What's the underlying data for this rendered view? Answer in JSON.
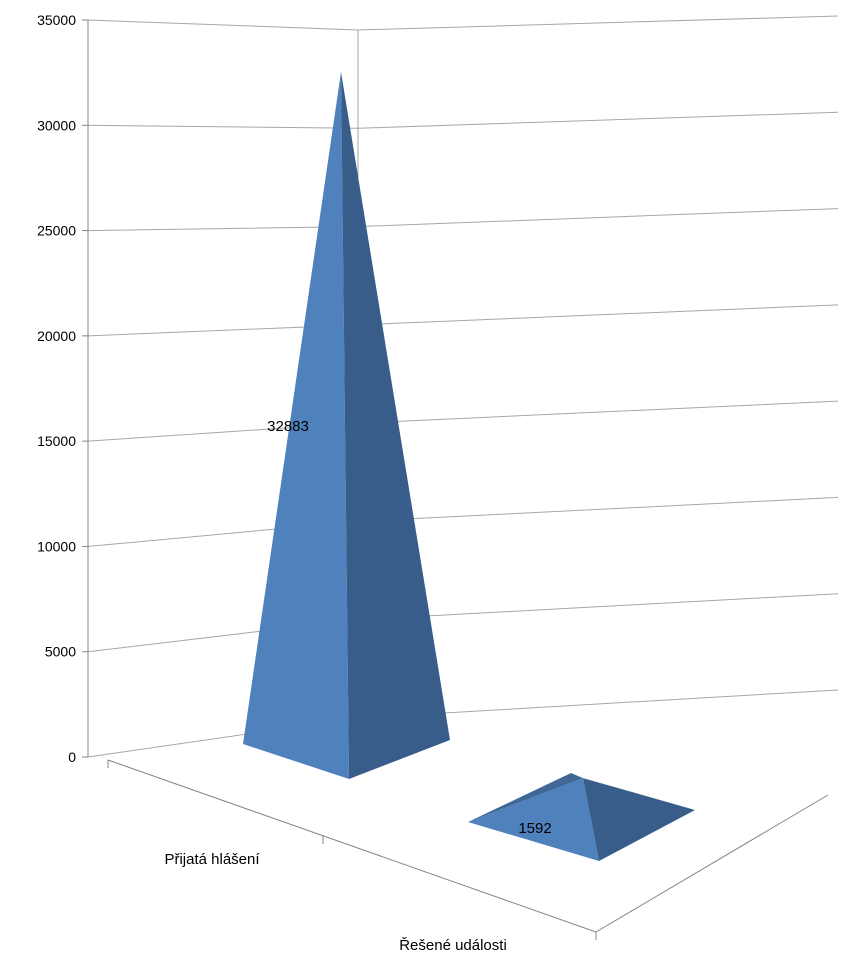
{
  "chart_data": {
    "type": "bar",
    "variant": "3d-pyramid",
    "title": "",
    "xlabel": "",
    "ylabel": "",
    "categories": [
      "Přijatá hlášení",
      "Řešené události"
    ],
    "values": [
      32883,
      1592
    ],
    "data_labels": [
      "32883",
      "1592"
    ],
    "ylim": [
      0,
      35000
    ],
    "y_ticks": [
      "0",
      "5000",
      "10000",
      "15000",
      "20000",
      "25000",
      "30000",
      "35000"
    ],
    "grid": true,
    "legend": "none",
    "colors": {
      "front_face": "#4f81bd",
      "side_face": "#385d8a",
      "gridline": "#a6a6a6",
      "axis": "#868686"
    }
  }
}
